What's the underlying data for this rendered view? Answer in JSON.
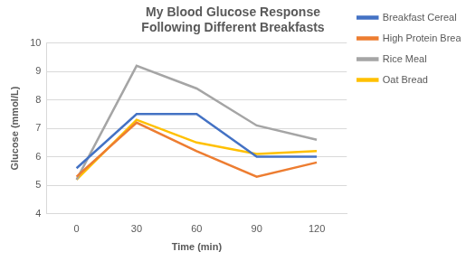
{
  "chart_data": {
    "type": "line",
    "title": "My Blood Glucose Response Following Different Breakfasts",
    "x_label": "Time (min)",
    "y_label": "Glucose (mmol/L)",
    "categories": [
      "0",
      "30",
      "60",
      "90",
      "120"
    ],
    "series": [
      {
        "name": "Breakfast Cereal",
        "color": "#4472c4",
        "values": [
          5.6,
          7.5,
          7.5,
          6.0,
          6.0
        ]
      },
      {
        "name": "High Protein Breakfast Beverage",
        "color": "#ed7d31",
        "values": [
          5.3,
          7.2,
          6.2,
          5.3,
          5.8
        ]
      },
      {
        "name": "Rice Meal",
        "color": "#a5a5a5",
        "values": [
          5.2,
          9.2,
          8.4,
          7.1,
          6.6
        ]
      },
      {
        "name": "Oat Bread",
        "color": "#ffc000",
        "values": [
          5.2,
          7.3,
          6.5,
          6.1,
          6.2
        ]
      }
    ],
    "ylim": [
      4,
      10
    ],
    "yticks": [
      4,
      5,
      6,
      7,
      8,
      9,
      10
    ],
    "grid": true,
    "legend": "right",
    "marker": "none"
  }
}
